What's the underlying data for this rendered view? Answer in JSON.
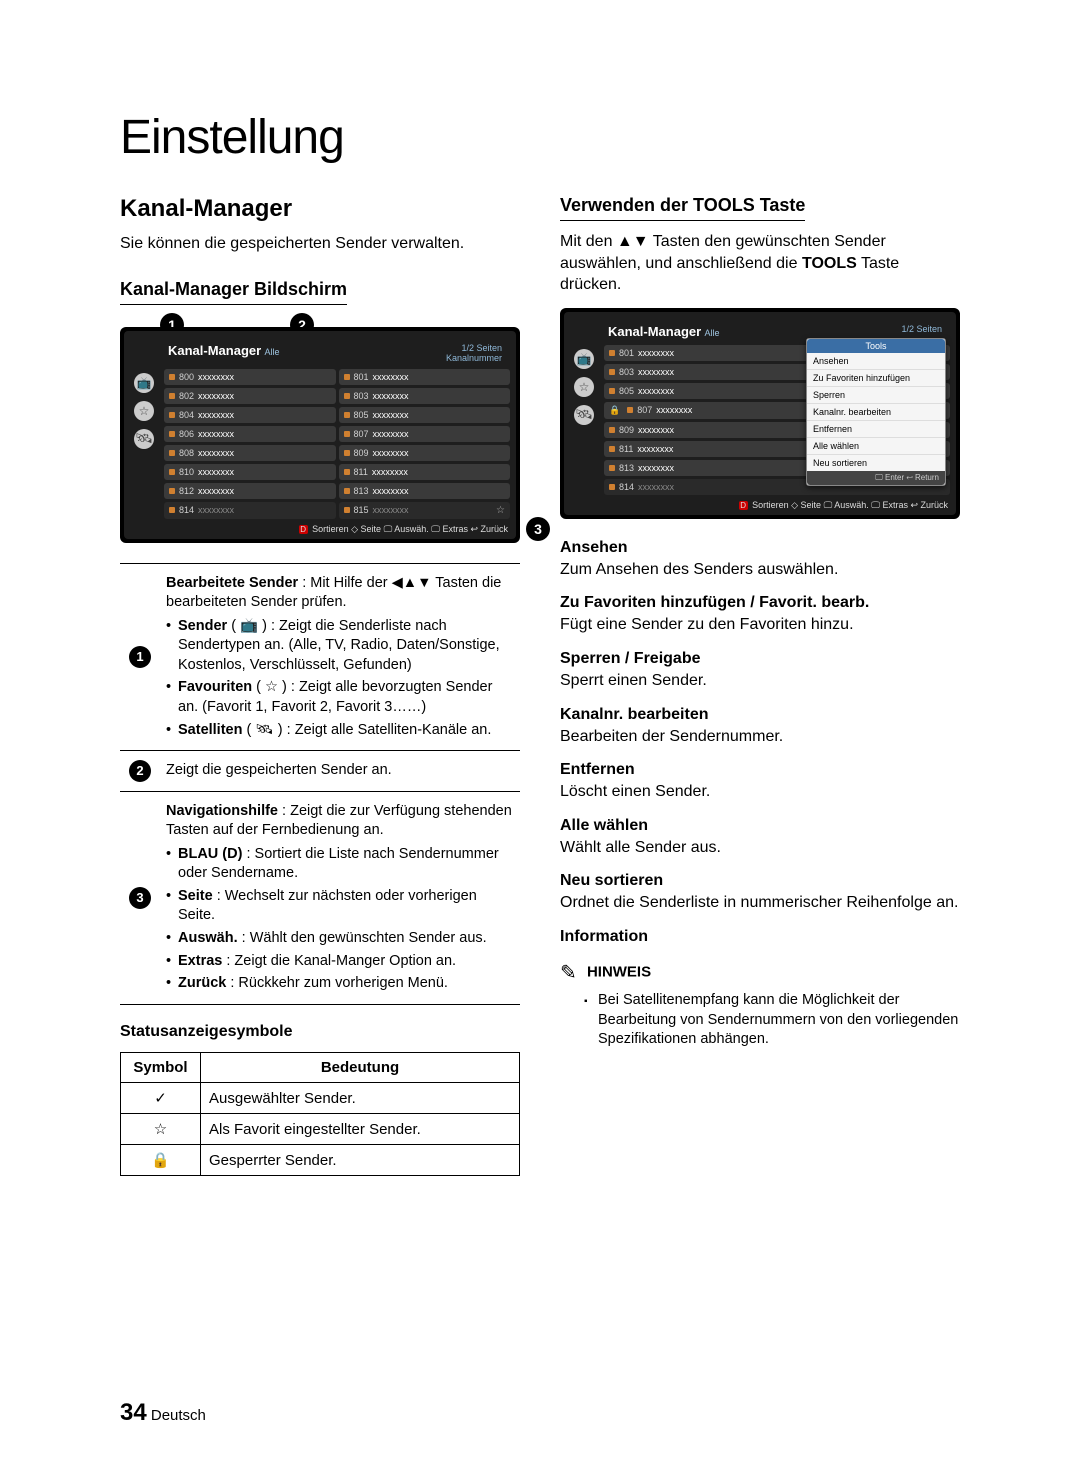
{
  "page": {
    "title": "Einstellung",
    "number": "34",
    "lang": "Deutsch"
  },
  "left": {
    "h2": "Kanal-Manager",
    "intro": "Sie können die gespeicherten Sender verwalten.",
    "h3": "Kanal-Manager Bildschirm",
    "screen": {
      "title": "Kanal-Manager",
      "sub": "Alle",
      "pages": "1/2 Seiten",
      "subright": "Kanalnummer",
      "footer": "Sortieren ◇ Seite 🖵 Auswäh. 🖵 Extras ↩ Zurück",
      "footer_d": "D",
      "channels": [
        {
          "n": "800",
          "x": "xxxxxxxx"
        },
        {
          "n": "801",
          "x": "xxxxxxxx"
        },
        {
          "n": "802",
          "x": "xxxxxxxx"
        },
        {
          "n": "803",
          "x": "xxxxxxxx"
        },
        {
          "n": "804",
          "x": "xxxxxxxx"
        },
        {
          "n": "805",
          "x": "xxxxxxxx"
        },
        {
          "n": "806",
          "x": "xxxxxxxx"
        },
        {
          "n": "807",
          "x": "xxxxxxxx"
        },
        {
          "n": "808",
          "x": "xxxxxxxx"
        },
        {
          "n": "809",
          "x": "xxxxxxxx"
        },
        {
          "n": "810",
          "x": "xxxxxxxx"
        },
        {
          "n": "811",
          "x": "xxxxxxxx"
        },
        {
          "n": "812",
          "x": "xxxxxxxx"
        },
        {
          "n": "813",
          "x": "xxxxxxxx"
        },
        {
          "n": "814",
          "x": "xxxxxxxx"
        },
        {
          "n": "815",
          "x": "xxxxxxxx"
        }
      ]
    },
    "markers": {
      "one": "1",
      "two": "2",
      "three": "3"
    },
    "expl": {
      "row1_lead": "Bearbeitete Sender",
      "row1_rest": " : Mit Hilfe der ◀▲▼ Tasten die bearbeiteten Sender prüfen.",
      "row1_b1": "Sender",
      "row1_b1r": " ( 📺 ) : Zeigt die Senderliste nach Sendertypen an. (Alle, TV, Radio, Daten/Sonstige, Kostenlos, Verschlüsselt, Gefunden)",
      "row1_b2": "Favouriten",
      "row1_b2r": " ( ☆ ) : Zeigt alle bevorzugten Sender an. (Favorit 1, Favorit 2, Favorit 3……)",
      "row1_b3": "Satelliten",
      "row1_b3r": " ( 🛰 ) : Zeigt alle Satelliten-Kanäle an.",
      "row2": "Zeigt die gespeicherten Sender an.",
      "row3_lead": "Navigationshilfe",
      "row3_rest": " : Zeigt die zur Verfügung stehenden Tasten auf der Fernbedienung an.",
      "row3_b1": "BLAU (D)",
      "row3_b1r": " : Sortiert die Liste nach Sendernummer oder Sendername.",
      "row3_b2": "Seite",
      "row3_b2r": " : Wechselt zur nächsten oder vorherigen Seite.",
      "row3_b3": "Auswäh.",
      "row3_b3r": " : Wählt den gewünschten Sender aus.",
      "row3_b4": "Extras",
      "row3_b4r": " : Zeigt die Kanal-Manger Option an.",
      "row3_b5": "Zurück",
      "row3_b5r": " : Rückkehr zum vorherigen Menü."
    },
    "status_h": "Statusanzeigesymbole",
    "table": {
      "col1": "Symbol",
      "col2": "Bedeutung",
      "r1s": "✓",
      "r1m": "Ausgewählter Sender.",
      "r2s": "☆",
      "r2m": "Als Favorit eingestellter Sender.",
      "r3s": "🔒",
      "r3m": "Gesperrter Sender."
    }
  },
  "right": {
    "h3": "Verwenden der TOOLS Taste",
    "intro_a": "Mit den ▲▼ Tasten den gewünschten Sender auswählen, und anschließend die ",
    "intro_b": "TOOLS",
    "intro_c": " Taste drücken.",
    "screen": {
      "title": "Kanal-Manager",
      "sub": "Alle",
      "pages": "1/2 Seiten",
      "footer": "Sortieren ◇ Seite 🖵 Auswäh. 🖵 Extras ↩ Zurück",
      "footer_d": "D",
      "pop_title": "Tools",
      "pop_foot": "🖵 Enter  ↩ Return",
      "pop_items": [
        "Ansehen",
        "Zu Favoriten hinzufügen",
        "Sperren",
        "Kanalnr. bearbeiten",
        "Entfernen",
        "Alle wählen",
        "Neu sortieren"
      ],
      "channels": [
        {
          "n": "801",
          "x": "xxxxxxxx"
        },
        {
          "n": "803",
          "x": "xxxxxxxx"
        },
        {
          "n": "805",
          "x": "xxxxxxxx"
        },
        {
          "n": "807",
          "x": "xxxxxxxx",
          "lock": true
        },
        {
          "n": "809",
          "x": "xxxxxxxx"
        },
        {
          "n": "811",
          "x": "xxxxxxxx"
        },
        {
          "n": "813",
          "x": "xxxxxxxx"
        },
        {
          "n": "814",
          "x": "xxxxxxxx"
        }
      ]
    },
    "defs": [
      {
        "t": "Ansehen",
        "d": "Zum Ansehen des Senders auswählen."
      },
      {
        "t": "Zu Favoriten hinzufügen / Favorit. bearb.",
        "d": "Fügt eine Sender zu den Favoriten hinzu."
      },
      {
        "t": "Sperren / Freigabe",
        "d": "Sperrt einen Sender."
      },
      {
        "t": "Kanalnr. bearbeiten",
        "d": "Bearbeiten der Sendernummer."
      },
      {
        "t": "Entfernen",
        "d": "Löscht einen Sender."
      },
      {
        "t": "Alle wählen",
        "d": "Wählt alle Sender aus."
      },
      {
        "t": "Neu sortieren",
        "d": "Ordnet die Senderliste in nummerischer Reihenfolge an."
      },
      {
        "t": "Information",
        "d": ""
      }
    ],
    "note_label": "HINWEIS",
    "note_hand": "✎",
    "note_item": "Bei Satellitenempfang kann die Möglichkeit der Bearbeitung von Sendernummern von den vorliegenden Spezifikationen abhängen."
  }
}
